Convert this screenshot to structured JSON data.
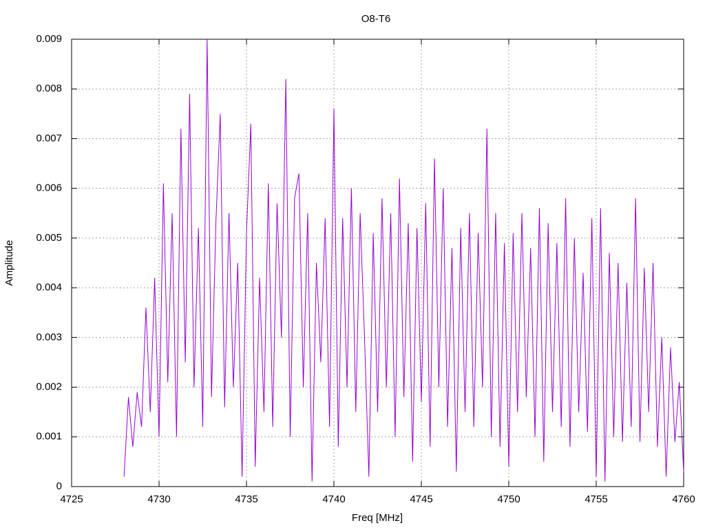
{
  "chart_data": {
    "type": "line",
    "title": "O8-T6",
    "x_label": "Freq [MHz]",
    "y_label": "Amplitude",
    "color": "#9400d3",
    "grid": true,
    "xlim": [
      4725,
      4760
    ],
    "xticks": [
      4725,
      4730,
      4735,
      4740,
      4745,
      4750,
      4755,
      4760
    ],
    "ylim": [
      0,
      0.009
    ],
    "yticks": [
      0,
      0.001,
      0.002,
      0.003,
      0.004,
      0.005,
      0.006,
      0.007,
      0.008,
      0.009
    ],
    "x": [
      4728,
      4728.25,
      4728.5,
      4728.75,
      4729,
      4729.25,
      4729.5,
      4729.75,
      4730,
      4730.25,
      4730.5,
      4730.75,
      4731,
      4731.25,
      4731.5,
      4731.75,
      4732,
      4732.25,
      4732.5,
      4732.75,
      4733,
      4733.25,
      4733.5,
      4733.75,
      4734,
      4734.25,
      4734.5,
      4734.75,
      4735,
      4735.25,
      4735.5,
      4735.75,
      4736,
      4736.25,
      4736.5,
      4736.75,
      4737,
      4737.25,
      4737.5,
      4737.75,
      4738,
      4738.25,
      4738.5,
      4738.75,
      4739,
      4739.25,
      4739.5,
      4739.75,
      4740,
      4740.25,
      4740.5,
      4740.75,
      4741,
      4741.25,
      4741.5,
      4741.75,
      4742,
      4742.25,
      4742.5,
      4742.75,
      4743,
      4743.25,
      4743.5,
      4743.75,
      4744,
      4744.25,
      4744.5,
      4744.75,
      4745,
      4745.25,
      4745.5,
      4745.75,
      4746,
      4746.25,
      4746.5,
      4746.75,
      4747,
      4747.25,
      4747.5,
      4747.75,
      4748,
      4748.25,
      4748.5,
      4748.75,
      4749,
      4749.25,
      4749.5,
      4749.75,
      4750,
      4750.25,
      4750.5,
      4750.75,
      4751,
      4751.25,
      4751.5,
      4751.75,
      4752,
      4752.25,
      4752.5,
      4752.75,
      4753,
      4753.25,
      4753.5,
      4753.75,
      4754,
      4754.25,
      4754.5,
      4754.75,
      4755,
      4755.25,
      4755.5,
      4755.75,
      4756,
      4756.25,
      4756.5,
      4756.75,
      4757,
      4757.25,
      4757.5,
      4757.75,
      4758,
      4758.25,
      4758.5,
      4758.75,
      4759,
      4759.25,
      4759.5,
      4759.75,
      4760
    ],
    "values": [
      0.0002,
      0.0018,
      0.0008,
      0.0019,
      0.0012,
      0.0036,
      0.0015,
      0.0042,
      0.001,
      0.0061,
      0.0021,
      0.0055,
      0.001,
      0.0072,
      0.0025,
      0.0079,
      0.002,
      0.0052,
      0.0012,
      0.009,
      0.0018,
      0.0053,
      0.0075,
      0.0016,
      0.0055,
      0.002,
      0.0045,
      0.0002,
      0.0051,
      0.0073,
      0.0004,
      0.0042,
      0.0015,
      0.0061,
      0.0012,
      0.0057,
      0.003,
      0.0082,
      0.001,
      0.0058,
      0.0063,
      0.002,
      0.0055,
      0.0001,
      0.0045,
      0.0025,
      0.0054,
      0.0012,
      0.0076,
      0.0008,
      0.0054,
      0.002,
      0.006,
      0.0015,
      0.0055,
      0.003,
      0.0002,
      0.0051,
      0.0015,
      0.0058,
      0.002,
      0.0055,
      0.001,
      0.0062,
      0.0018,
      0.0053,
      0.0005,
      0.0052,
      0.0017,
      0.0057,
      0.0008,
      0.0066,
      0.002,
      0.006,
      0.0012,
      0.0048,
      0.0003,
      0.0052,
      0.0015,
      0.0055,
      0.0012,
      0.0051,
      0.002,
      0.0072,
      0.001,
      0.0055,
      0.0008,
      0.0049,
      0.0004,
      0.0051,
      0.0015,
      0.0055,
      0.0018,
      0.0048,
      0.001,
      0.0056,
      0.0005,
      0.0053,
      0.0015,
      0.0049,
      0.0012,
      0.0058,
      0.0008,
      0.005,
      0.0015,
      0.0043,
      0.0011,
      0.0054,
      0.0002,
      0.0056,
      0.0001,
      0.0047,
      0.001,
      0.0045,
      0.0009,
      0.0041,
      0.0012,
      0.0058,
      0.0009,
      0.0044,
      0.0015,
      0.0045,
      0.0008,
      0.003,
      0.0002,
      0.0028,
      0.0009,
      0.0021,
      0.0003
    ]
  }
}
